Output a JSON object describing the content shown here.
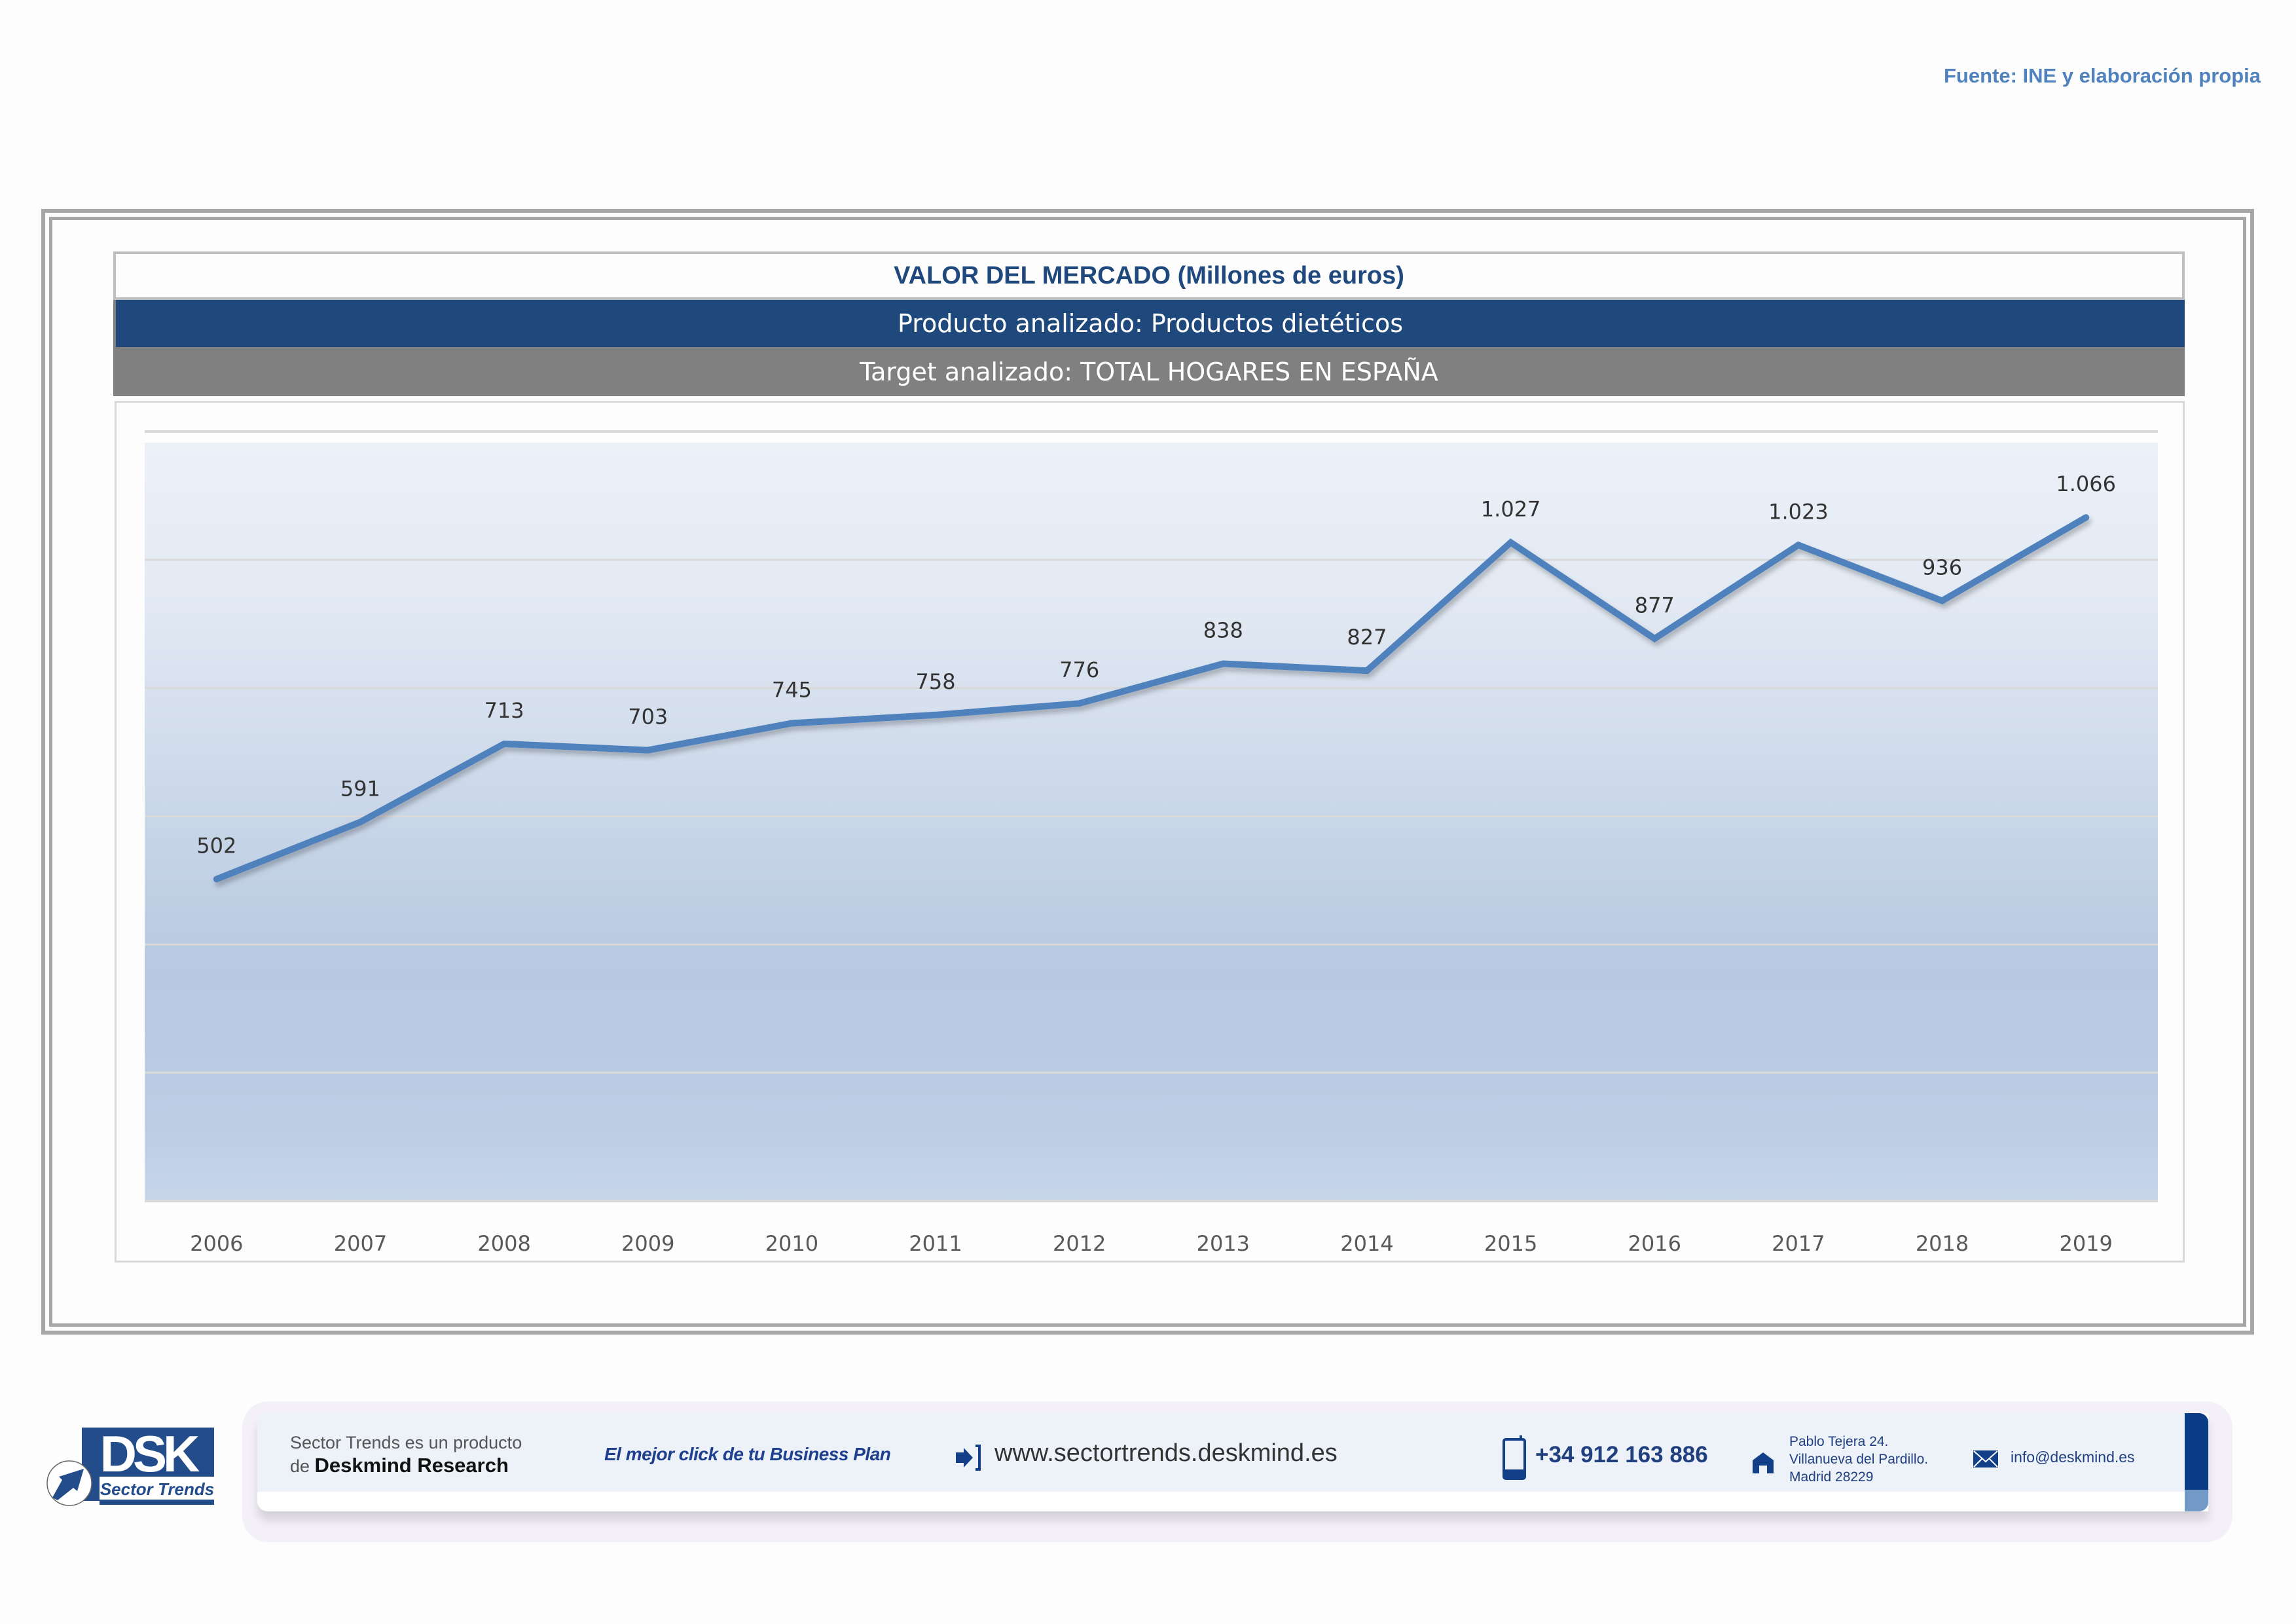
{
  "source_note": "Fuente: INE y elaboración propia",
  "header": {
    "title": "VALOR DEL MERCADO (Millones de euros)",
    "product": "Producto analizado: Productos dietéticos",
    "target": "Target analizado: TOTAL HOGARES EN ESPAÑA"
  },
  "colors": {
    "title_text": "#1f497d",
    "product_bar": "#1f497d",
    "target_bar": "#808080",
    "line": "#4f81bd",
    "source_text": "#4f81bd"
  },
  "chart_data": {
    "type": "line",
    "title": "VALOR DEL MERCADO (Millones de euros)",
    "xlabel": "",
    "ylabel": "",
    "categories": [
      "2006",
      "2007",
      "2008",
      "2009",
      "2010",
      "2011",
      "2012",
      "2013",
      "2014",
      "2015",
      "2016",
      "2017",
      "2018",
      "2019"
    ],
    "series": [
      {
        "name": "Valor del mercado",
        "values": [
          502,
          591,
          713,
          703,
          745,
          758,
          776,
          838,
          827,
          1027,
          877,
          1023,
          936,
          1066
        ],
        "labels": [
          "502",
          "591",
          "713",
          "703",
          "745",
          "758",
          "776",
          "838",
          "827",
          "1.027",
          "877",
          "1.023",
          "936",
          "1.066"
        ]
      }
    ],
    "ylim": [
      0,
      1200
    ],
    "y_gridlines": [
      200,
      400,
      600,
      800,
      1000
    ],
    "y_axis_visible": false,
    "grid": true,
    "legend": "none"
  },
  "footer": {
    "logo": {
      "brand": "DSK",
      "subtitle": "Sector Trends"
    },
    "product_line1": "Sector Trends es un producto",
    "product_line2_prefix": "de ",
    "product_line2_brand": "Deskmind Research",
    "slogan": "El mejor click de tu Business Plan",
    "website": "www.sectortrends.deskmind.es",
    "phone": "+34 912 163 886",
    "address": "Pablo Tejera 24.\nVillanueva del Pardillo.\nMadrid 28229",
    "email": "info@deskmind.es"
  }
}
